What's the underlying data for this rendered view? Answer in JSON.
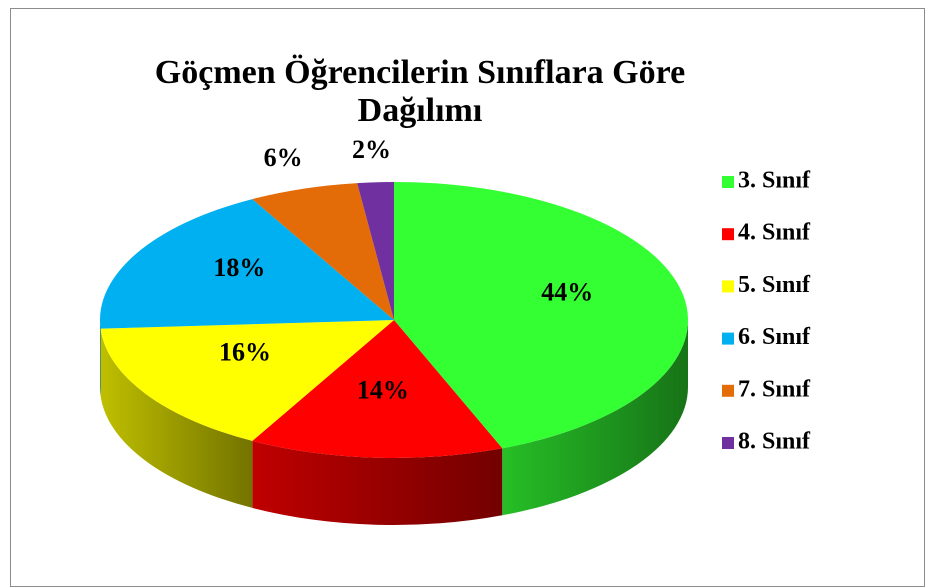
{
  "chart_data": {
    "type": "pie",
    "title": "Göçmen Öğrencilerin Sınıflara Göre Dağılımı",
    "title_lines": [
      "Göçmen Öğrencilerin Sınıflara Göre",
      "Dağılımı"
    ],
    "categories": [
      "3. Sınıf",
      "4. Sınıf",
      "5. Sınıf",
      "6. Sınıf",
      "7. Sınıf",
      "8. Sınıf"
    ],
    "values": [
      44,
      14,
      16,
      18,
      6,
      2
    ],
    "value_labels": [
      "44%",
      "14%",
      "16%",
      "18%",
      "6%",
      "2%"
    ],
    "colors": [
      "#33ff33",
      "#ff0000",
      "#ffff00",
      "#00b0f0",
      "#e36c09",
      "#7030a0"
    ],
    "legend": "right"
  }
}
